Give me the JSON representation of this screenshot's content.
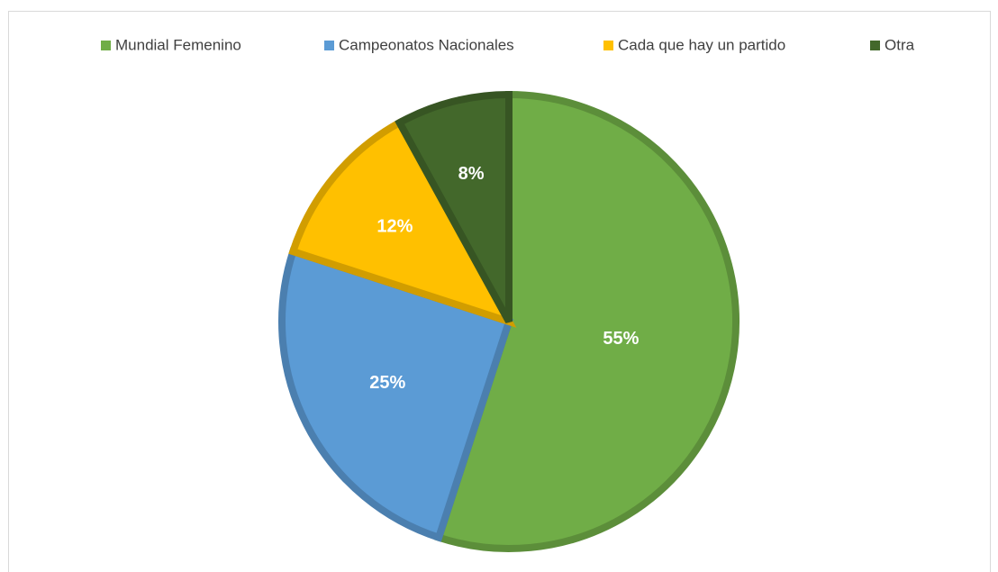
{
  "chart_data": {
    "type": "pie",
    "categories": [
      "Mundial Femenino",
      "Campeonatos Nacionales",
      "Cada que hay un partido",
      "Otra"
    ],
    "values": [
      55,
      25,
      12,
      8
    ],
    "value_labels": [
      "55%",
      "25%",
      "12%",
      "8%"
    ],
    "colors": [
      "#70ad47",
      "#5b9bd5",
      "#ffc000",
      "#43682b"
    ],
    "legend": "top"
  }
}
